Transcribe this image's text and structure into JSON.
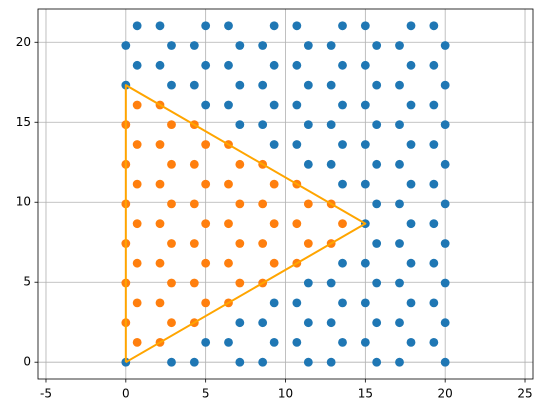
{
  "chart_data": {
    "type": "scatter",
    "grid": true,
    "xlim": [
      -5.5,
      25.5
    ],
    "ylim": [
      -1.05,
      22.08
    ],
    "xticks": [
      -5,
      0,
      5,
      10,
      15,
      20,
      25
    ],
    "yticks": [
      0,
      5,
      10,
      15,
      20
    ],
    "series": [
      {
        "mode": "markers",
        "color": "#1f77b4",
        "x": [
          0,
          2.86,
          4.29,
          7.14,
          8.57,
          11.43,
          12.86,
          15.71,
          17.14,
          20,
          5,
          6.43,
          9.29,
          10.71,
          13.57,
          15,
          17.86,
          19.29,
          7.14,
          8.57,
          11.43,
          12.86,
          15.71,
          17.14,
          20,
          9.29,
          10.71,
          13.57,
          15,
          17.86,
          19.29,
          11.43,
          12.86,
          15.71,
          17.14,
          20,
          13.57,
          15,
          17.86,
          19.29,
          15.71,
          17.14,
          20,
          15,
          17.86,
          19.29,
          15.71,
          17.14,
          20,
          13.57,
          15,
          17.86,
          19.29,
          11.43,
          12.86,
          15.71,
          17.14,
          20,
          9.29,
          10.71,
          13.57,
          15,
          17.86,
          19.29,
          7.14,
          8.57,
          11.43,
          12.86,
          15.71,
          17.14,
          20,
          5,
          6.43,
          9.29,
          10.71,
          13.57,
          15,
          17.86,
          19.29,
          0,
          2.86,
          4.29,
          7.14,
          8.57,
          11.43,
          12.86,
          15.71,
          17.14,
          20,
          0.71,
          2.14,
          5,
          6.43,
          9.29,
          10.71,
          13.57,
          15,
          17.86,
          19.29,
          0,
          2.86,
          4.29,
          7.14,
          8.57,
          11.43,
          12.86,
          15.71,
          17.14,
          20,
          0.71,
          2.14,
          5,
          6.43,
          9.29,
          10.71,
          13.57,
          15,
          17.86,
          19.29
        ],
        "y": [
          0,
          0,
          0,
          0,
          0,
          0,
          0,
          0,
          0,
          0,
          1.24,
          1.24,
          1.24,
          1.24,
          1.24,
          1.24,
          1.24,
          1.24,
          2.47,
          2.47,
          2.47,
          2.47,
          2.47,
          2.47,
          2.47,
          3.71,
          3.71,
          3.71,
          3.71,
          3.71,
          3.71,
          4.95,
          4.95,
          4.95,
          4.95,
          4.95,
          6.19,
          6.19,
          6.19,
          6.19,
          7.42,
          7.42,
          7.42,
          8.66,
          8.66,
          8.66,
          9.9,
          9.9,
          9.9,
          11.13,
          11.13,
          11.13,
          11.13,
          12.37,
          12.37,
          12.37,
          12.37,
          12.37,
          13.61,
          13.61,
          13.61,
          13.61,
          13.61,
          13.61,
          14.85,
          14.85,
          14.85,
          14.85,
          14.85,
          14.85,
          14.85,
          16.08,
          16.08,
          16.08,
          16.08,
          16.08,
          16.08,
          16.08,
          16.08,
          17.32,
          17.32,
          17.32,
          17.32,
          17.32,
          17.32,
          17.32,
          17.32,
          17.32,
          17.32,
          18.56,
          18.56,
          18.56,
          18.56,
          18.56,
          18.56,
          18.56,
          18.56,
          18.56,
          18.56,
          19.8,
          19.8,
          19.8,
          19.8,
          19.8,
          19.8,
          19.8,
          19.8,
          19.8,
          19.8,
          21.03,
          21.03,
          21.03,
          21.03,
          21.03,
          21.03,
          21.03,
          21.03,
          21.03,
          21.03
        ]
      },
      {
        "mode": "markers",
        "color": "#ff7f0e",
        "x": [
          0.71,
          2.14,
          0,
          2.86,
          4.29,
          0.71,
          2.14,
          5,
          6.43,
          0,
          2.86,
          4.29,
          7.14,
          8.57,
          0.71,
          2.14,
          5,
          6.43,
          9.29,
          10.71,
          0,
          2.86,
          4.29,
          7.14,
          8.57,
          11.43,
          12.86,
          0.71,
          2.14,
          5,
          6.43,
          9.29,
          10.71,
          13.57,
          0,
          2.86,
          4.29,
          7.14,
          8.57,
          11.43,
          12.86,
          0.71,
          2.14,
          5,
          6.43,
          9.29,
          10.71,
          0,
          2.86,
          4.29,
          7.14,
          8.57,
          0.71,
          2.14,
          5,
          6.43,
          0,
          2.86,
          4.29,
          0.71,
          2.14
        ],
        "y": [
          1.24,
          1.24,
          2.47,
          2.47,
          2.47,
          3.71,
          3.71,
          3.71,
          3.71,
          4.95,
          4.95,
          4.95,
          4.95,
          4.95,
          6.19,
          6.19,
          6.19,
          6.19,
          6.19,
          6.19,
          7.42,
          7.42,
          7.42,
          7.42,
          7.42,
          7.42,
          7.42,
          8.66,
          8.66,
          8.66,
          8.66,
          8.66,
          8.66,
          8.66,
          9.9,
          9.9,
          9.9,
          9.9,
          9.9,
          9.9,
          9.9,
          11.13,
          11.13,
          11.13,
          11.13,
          11.13,
          11.13,
          12.37,
          12.37,
          12.37,
          12.37,
          12.37,
          13.61,
          13.61,
          13.61,
          13.61,
          14.85,
          14.85,
          14.85,
          16.08,
          16.08
        ]
      },
      {
        "mode": "lines",
        "color": "#ffa500",
        "x": [
          0,
          15,
          0,
          0
        ],
        "y": [
          0,
          8.66,
          17.32,
          0
        ]
      }
    ]
  }
}
